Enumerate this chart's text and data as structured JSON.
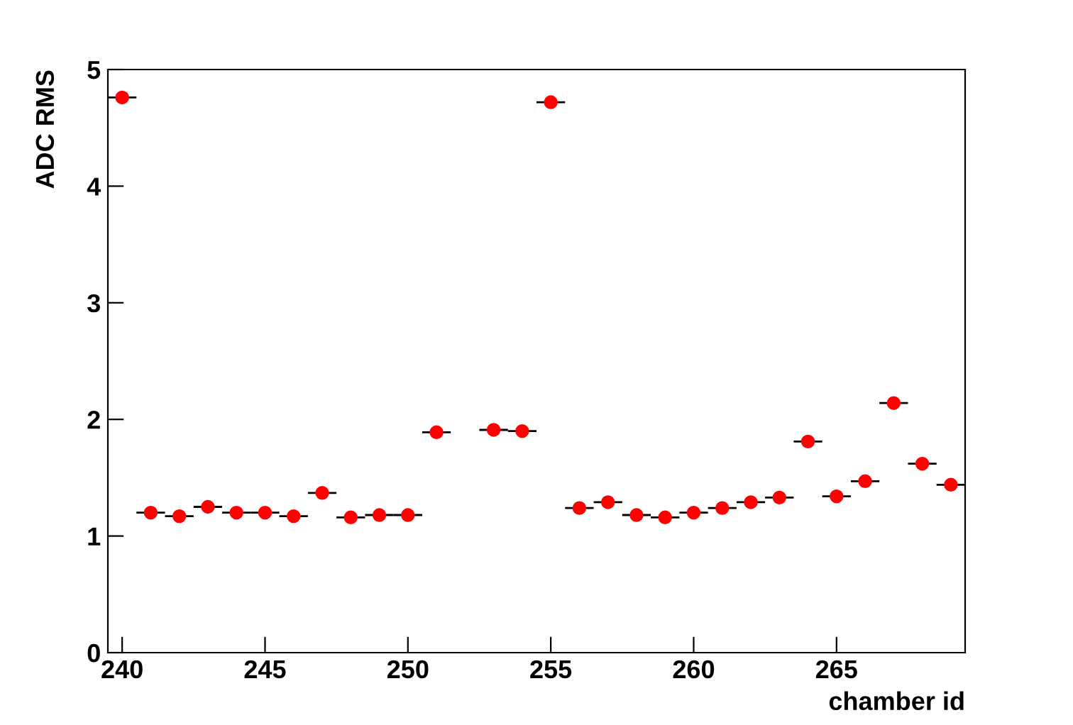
{
  "chart_data": {
    "type": "scatter",
    "xlabel": "chamber id",
    "ylabel": "ADC RMS",
    "x": [
      240,
      241,
      242,
      243,
      244,
      245,
      246,
      247,
      248,
      249,
      250,
      251,
      253,
      254,
      255,
      256,
      257,
      258,
      259,
      260,
      261,
      262,
      263,
      264,
      265,
      266,
      267,
      268,
      269
    ],
    "values": [
      4.76,
      1.2,
      1.17,
      1.25,
      1.2,
      1.2,
      1.17,
      1.37,
      1.16,
      1.18,
      1.18,
      1.89,
      1.91,
      1.9,
      4.72,
      1.24,
      1.29,
      1.18,
      1.16,
      1.2,
      1.24,
      1.29,
      1.33,
      1.81,
      1.34,
      1.47,
      2.14,
      1.62,
      1.44
    ],
    "xerrors": [
      0.5,
      0.5,
      0.5,
      0.5,
      0.5,
      0.5,
      0.5,
      0.5,
      0.5,
      0.5,
      0.5,
      0.5,
      0.5,
      0.5,
      0.5,
      0.5,
      0.5,
      0.5,
      0.5,
      0.5,
      0.5,
      0.5,
      0.5,
      0.5,
      0.5,
      0.5,
      0.5,
      0.5,
      0.5
    ],
    "color": "#ff0000",
    "marker": "circle",
    "xlim": [
      239.5,
      269.5
    ],
    "ylim": [
      0,
      5
    ],
    "xticks": [
      240,
      245,
      250,
      255,
      260,
      265
    ],
    "yticks": [
      0,
      1,
      2,
      3,
      4,
      5
    ],
    "grid": false
  }
}
